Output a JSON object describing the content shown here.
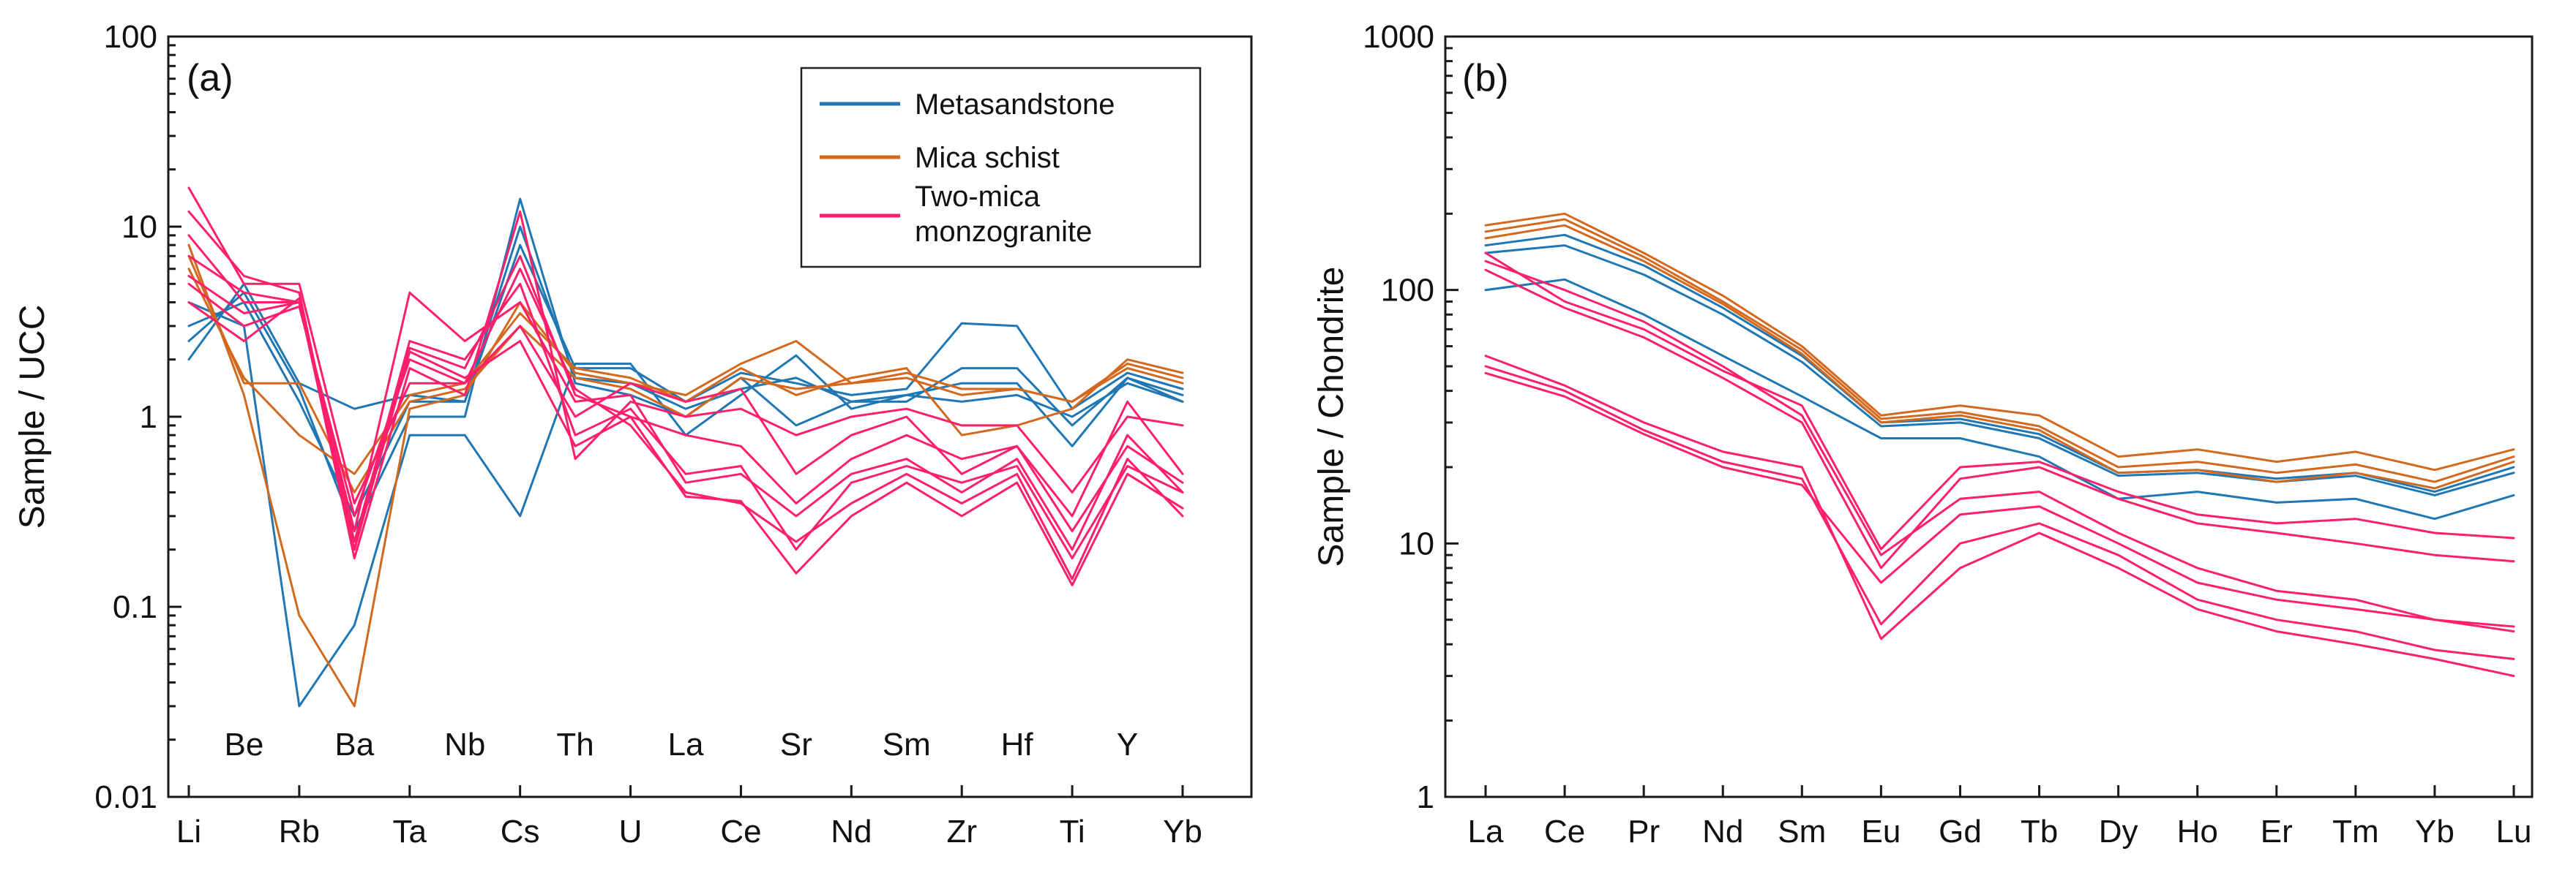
{
  "chart_data": [
    {
      "type": "line",
      "panel_label": "(a)",
      "ylabel": "Sample / UCC",
      "yscale": "log",
      "ylim": [
        0.01,
        100
      ],
      "yticks": [
        "0.01",
        "0.1",
        "1",
        "10",
        "100"
      ],
      "categories": [
        "Li",
        "Be",
        "Rb",
        "Ba",
        "Ta",
        "Nb",
        "Cs",
        "Th",
        "U",
        "La",
        "Ce",
        "Sr",
        "Nd",
        "Sm",
        "Zr",
        "Hf",
        "Ti",
        "Y",
        "Yb"
      ],
      "axis_tick_labels": [
        "Li",
        "Rb",
        "Ta",
        "Cs",
        "U",
        "Ce",
        "Nd",
        "Zr",
        "Ti",
        "Yb"
      ],
      "inner_labels": [
        "Be",
        "Ba",
        "Nb",
        "Th",
        "La",
        "Sr",
        "Sm",
        "Hf",
        "Y"
      ],
      "legend": {
        "position": "top-right",
        "entries": [
          {
            "label": "Metasandstone",
            "color": "#1f77b4"
          },
          {
            "label": "Mica schist",
            "color": "#d2691e"
          },
          {
            "label_lines": [
              "Two-mica",
              "monzogranite"
            ],
            "color": "#ff1f6a"
          }
        ]
      },
      "series": [
        {
          "group": "Metasandstone",
          "color": "#1f77b4",
          "values": [
            2.0,
            5.0,
            1.5,
            1.1,
            1.3,
            1.2,
            8.0,
            1.8,
            1.8,
            1.2,
            1.7,
            1.5,
            1.3,
            1.4,
            3.1,
            3.0,
            1.1,
            1.7,
            1.4
          ]
        },
        {
          "group": "Metasandstone",
          "color": "#1f77b4",
          "values": [
            4.0,
            3.0,
            0.03,
            0.08,
            0.8,
            0.8,
            0.3,
            1.9,
            1.9,
            0.8,
            1.3,
            2.1,
            1.1,
            1.3,
            1.5,
            1.5,
            0.7,
            1.6,
            1.2
          ]
        },
        {
          "group": "Metasandstone",
          "color": "#1f77b4",
          "values": [
            2.5,
            4.5,
            1.4,
            0.25,
            1.0,
            1.0,
            14.0,
            1.5,
            1.3,
            1.0,
            1.6,
            0.9,
            1.2,
            1.2,
            1.8,
            1.8,
            0.9,
            1.6,
            1.3
          ]
        },
        {
          "group": "Metasandstone",
          "color": "#1f77b4",
          "values": [
            3.0,
            4.0,
            1.2,
            0.3,
            1.2,
            1.2,
            10.0,
            1.6,
            1.5,
            1.1,
            1.4,
            1.6,
            1.2,
            1.3,
            1.2,
            1.3,
            1.0,
            1.5,
            1.2
          ]
        },
        {
          "group": "Mica schist",
          "color": "#d2691e",
          "values": [
            8.0,
            1.3,
            0.09,
            0.03,
            1.1,
            1.3,
            4.0,
            1.7,
            1.5,
            1.3,
            1.9,
            2.5,
            1.5,
            1.7,
            1.4,
            1.4,
            1.2,
            1.8,
            1.5
          ]
        },
        {
          "group": "Mica schist",
          "color": "#d2691e",
          "values": [
            6.0,
            1.6,
            0.8,
            0.5,
            1.3,
            1.5,
            3.5,
            1.8,
            1.6,
            1.2,
            1.8,
            1.3,
            1.6,
            1.8,
            0.8,
            0.9,
            1.1,
            2.0,
            1.7
          ]
        },
        {
          "group": "Mica schist",
          "color": "#d2691e",
          "values": [
            7.0,
            1.5,
            1.5,
            0.4,
            1.2,
            1.4,
            3.0,
            1.6,
            1.4,
            1.0,
            1.6,
            1.4,
            1.5,
            1.6,
            1.3,
            1.4,
            1.2,
            1.9,
            1.6
          ]
        },
        {
          "group": "Two-mica monzogranite",
          "color": "#ff1f6a",
          "values": [
            16.0,
            5.0,
            5.0,
            0.35,
            1.5,
            1.5,
            6.0,
            1.4,
            0.9,
            0.4,
            0.35,
            0.22,
            0.35,
            0.5,
            0.35,
            0.5,
            0.14,
            0.6,
            0.3
          ]
        },
        {
          "group": "Two-mica monzogranite",
          "color": "#ff1f6a",
          "values": [
            12.0,
            5.5,
            4.5,
            0.2,
            2.3,
            1.8,
            7.0,
            1.3,
            1.0,
            0.38,
            0.36,
            0.15,
            0.3,
            0.45,
            0.3,
            0.45,
            0.13,
            0.5,
            0.33
          ]
        },
        {
          "group": "Two-mica monzogranite",
          "color": "#ff1f6a",
          "values": [
            9.0,
            4.0,
            4.0,
            0.25,
            4.5,
            2.5,
            4.0,
            1.2,
            1.3,
            0.45,
            0.5,
            0.3,
            0.5,
            0.6,
            0.4,
            0.6,
            0.2,
            0.8,
            0.4
          ]
        },
        {
          "group": "Two-mica monzogranite",
          "color": "#ff1f6a",
          "values": [
            5.0,
            3.0,
            3.8,
            0.3,
            2.0,
            1.5,
            3.0,
            1.0,
            1.5,
            1.2,
            1.4,
            0.5,
            0.8,
            1.0,
            0.5,
            0.7,
            0.3,
            1.2,
            0.5
          ]
        },
        {
          "group": "Two-mica monzogranite",
          "color": "#ff1f6a",
          "values": [
            4.0,
            2.5,
            4.2,
            0.18,
            1.8,
            1.3,
            12.0,
            0.6,
            1.2,
            1.0,
            1.1,
            0.8,
            1.0,
            1.1,
            0.9,
            0.9,
            0.4,
            1.0,
            0.9
          ]
        },
        {
          "group": "Two-mica monzogranite",
          "color": "#ff1f6a",
          "values": [
            5.5,
            3.5,
            4.0,
            0.2,
            2.2,
            1.6,
            2.5,
            0.7,
            1.0,
            0.8,
            0.7,
            0.35,
            0.6,
            0.8,
            0.6,
            0.7,
            0.25,
            0.7,
            0.45
          ]
        },
        {
          "group": "Two-mica monzogranite",
          "color": "#ff1f6a",
          "values": [
            7.0,
            4.5,
            4.0,
            0.22,
            2.5,
            2.0,
            5.0,
            0.8,
            1.1,
            0.5,
            0.55,
            0.2,
            0.45,
            0.55,
            0.45,
            0.55,
            0.18,
            0.55,
            0.4
          ]
        }
      ]
    },
    {
      "type": "line",
      "panel_label": "(b)",
      "ylabel": "Sample / Chondrite",
      "yscale": "log",
      "ylim": [
        1,
        1000
      ],
      "yticks": [
        "1",
        "10",
        "100",
        "1000"
      ],
      "categories": [
        "La",
        "Ce",
        "Pr",
        "Nd",
        "Sm",
        "Eu",
        "Gd",
        "Tb",
        "Dy",
        "Ho",
        "Er",
        "Tm",
        "Yb",
        "Lu"
      ],
      "series": [
        {
          "group": "Metasandstone",
          "color": "#1f77b4",
          "values": [
            150,
            165,
            125,
            85,
            55,
            30,
            31,
            27,
            19,
            19.5,
            18,
            19,
            16,
            20
          ]
        },
        {
          "group": "Metasandstone",
          "color": "#1f77b4",
          "values": [
            100,
            110,
            80,
            55,
            38,
            26,
            26,
            22,
            15,
            16,
            14.5,
            15,
            12.5,
            15.5
          ]
        },
        {
          "group": "Metasandstone",
          "color": "#1f77b4",
          "values": [
            140,
            150,
            115,
            80,
            52,
            29,
            30,
            26,
            18.5,
            19,
            17.5,
            18.5,
            15.5,
            19
          ]
        },
        {
          "group": "Mica schist",
          "color": "#d2691e",
          "values": [
            180,
            200,
            140,
            95,
            60,
            32,
            35,
            32,
            22,
            23.5,
            21,
            23,
            19.5,
            23.5
          ]
        },
        {
          "group": "Mica schist",
          "color": "#d2691e",
          "values": [
            170,
            190,
            135,
            90,
            58,
            31,
            33,
            29,
            20,
            21,
            19,
            20.5,
            17.5,
            22
          ]
        },
        {
          "group": "Mica schist",
          "color": "#d2691e",
          "values": [
            160,
            180,
            130,
            88,
            56,
            30,
            32,
            28,
            19,
            19.5,
            17.5,
            19,
            16.5,
            21
          ]
        },
        {
          "group": "Two-mica monzogranite",
          "color": "#ff1f6a",
          "values": [
            55,
            42,
            30,
            23,
            20,
            4.2,
            8,
            11,
            8,
            5.5,
            4.5,
            4,
            3.5,
            3.0
          ]
        },
        {
          "group": "Two-mica monzogranite",
          "color": "#ff1f6a",
          "values": [
            50,
            40,
            28,
            21,
            18,
            4.8,
            10,
            12,
            9,
            6,
            5,
            4.5,
            3.8,
            3.5
          ]
        },
        {
          "group": "Two-mica monzogranite",
          "color": "#ff1f6a",
          "values": [
            47,
            38,
            27,
            20,
            17,
            7,
            13,
            14,
            10,
            7,
            6,
            5.5,
            5,
            4.5
          ]
        },
        {
          "group": "Two-mica monzogranite",
          "color": "#ff1f6a",
          "values": [
            130,
            100,
            75,
            50,
            32,
            9,
            15,
            16,
            11,
            8,
            6.5,
            6,
            5,
            4.7
          ]
        },
        {
          "group": "Two-mica monzogranite",
          "color": "#ff1f6a",
          "values": [
            120,
            85,
            65,
            45,
            30,
            8,
            18,
            20,
            15,
            12,
            11,
            10,
            9,
            8.5
          ]
        },
        {
          "group": "Two-mica monzogranite",
          "color": "#ff1f6a",
          "values": [
            140,
            90,
            70,
            48,
            35,
            9.5,
            20,
            21,
            16,
            13,
            12,
            12.5,
            11,
            10.5
          ]
        }
      ]
    }
  ]
}
